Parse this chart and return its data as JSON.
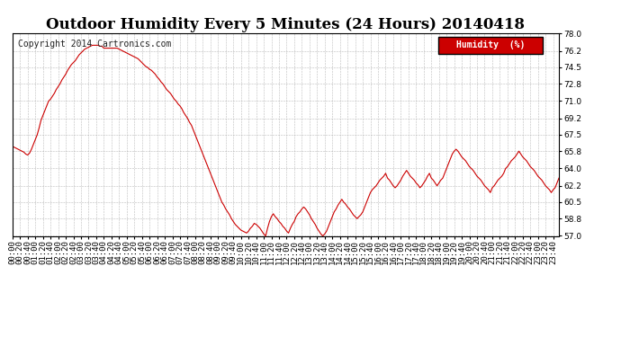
{
  "title": "Outdoor Humidity Every 5 Minutes (24 Hours) 20140418",
  "copyright": "Copyright 2014 Cartronics.com",
  "legend_label": "Humidity  (%)",
  "legend_bg": "#cc0000",
  "legend_text_color": "#ffffff",
  "line_color": "#cc0000",
  "bg_color": "#ffffff",
  "grid_color": "#aaaaaa",
  "ylim": [
    57.0,
    78.0
  ],
  "yticks": [
    57.0,
    58.8,
    60.5,
    62.2,
    64.0,
    65.8,
    67.5,
    69.2,
    71.0,
    72.8,
    74.5,
    76.2,
    78.0
  ],
  "title_fontsize": 12,
  "axis_fontsize": 6.5,
  "copyright_fontsize": 7,
  "humidity_data": [
    66.3,
    66.2,
    66.1,
    66.0,
    65.9,
    65.8,
    65.7,
    65.5,
    65.4,
    65.6,
    66.0,
    66.5,
    67.0,
    67.5,
    68.2,
    69.0,
    69.5,
    70.0,
    70.5,
    71.0,
    71.2,
    71.5,
    71.8,
    72.2,
    72.5,
    72.8,
    73.2,
    73.5,
    73.8,
    74.2,
    74.5,
    74.8,
    75.0,
    75.2,
    75.5,
    75.8,
    76.0,
    76.2,
    76.4,
    76.5,
    76.6,
    76.7,
    76.8,
    76.8,
    76.8,
    76.8,
    76.7,
    76.7,
    76.5,
    76.5,
    76.5,
    76.5,
    76.5,
    76.5,
    76.5,
    76.5,
    76.4,
    76.3,
    76.2,
    76.1,
    76.0,
    75.9,
    75.8,
    75.7,
    75.6,
    75.5,
    75.4,
    75.2,
    75.0,
    74.8,
    74.6,
    74.5,
    74.3,
    74.2,
    74.0,
    73.8,
    73.5,
    73.3,
    73.0,
    72.8,
    72.5,
    72.2,
    72.0,
    71.8,
    71.5,
    71.2,
    71.0,
    70.7,
    70.5,
    70.2,
    69.8,
    69.5,
    69.2,
    68.8,
    68.5,
    68.0,
    67.5,
    67.0,
    66.5,
    66.0,
    65.5,
    65.0,
    64.5,
    64.0,
    63.5,
    63.0,
    62.5,
    62.0,
    61.5,
    61.0,
    60.5,
    60.2,
    59.8,
    59.5,
    59.2,
    58.8,
    58.5,
    58.2,
    58.0,
    57.8,
    57.6,
    57.5,
    57.4,
    57.3,
    57.5,
    57.8,
    58.0,
    58.3,
    58.2,
    58.0,
    57.8,
    57.5,
    57.2,
    57.0,
    57.8,
    58.5,
    59.0,
    59.3,
    59.0,
    58.8,
    58.5,
    58.3,
    58.0,
    57.8,
    57.5,
    57.3,
    57.8,
    58.2,
    58.5,
    59.0,
    59.3,
    59.5,
    59.8,
    60.0,
    59.8,
    59.5,
    59.2,
    58.8,
    58.5,
    58.2,
    57.8,
    57.5,
    57.2,
    57.0,
    57.2,
    57.5,
    58.0,
    58.5,
    59.0,
    59.5,
    59.8,
    60.2,
    60.5,
    60.8,
    60.5,
    60.3,
    60.0,
    59.8,
    59.5,
    59.2,
    59.0,
    58.8,
    59.0,
    59.2,
    59.5,
    60.0,
    60.5,
    61.0,
    61.5,
    61.8,
    62.0,
    62.2,
    62.5,
    62.8,
    63.0,
    63.2,
    63.5,
    63.0,
    62.8,
    62.5,
    62.2,
    62.0,
    62.2,
    62.5,
    62.8,
    63.2,
    63.5,
    63.8,
    63.5,
    63.2,
    63.0,
    62.8,
    62.5,
    62.3,
    62.0,
    62.2,
    62.5,
    62.8,
    63.2,
    63.5,
    63.0,
    62.8,
    62.5,
    62.2,
    62.5,
    62.8,
    63.0,
    63.5,
    64.0,
    64.5,
    65.0,
    65.5,
    65.8,
    66.0,
    65.8,
    65.5,
    65.2,
    65.0,
    64.8,
    64.5,
    64.2,
    64.0,
    63.8,
    63.5,
    63.2,
    63.0,
    62.8,
    62.5,
    62.2,
    62.0,
    61.8,
    61.5,
    62.0,
    62.2,
    62.5,
    62.8,
    63.0,
    63.2,
    63.5,
    64.0,
    64.2,
    64.5,
    64.8,
    65.0,
    65.2,
    65.5,
    65.8,
    65.5,
    65.2,
    65.0,
    64.8,
    64.5,
    64.2,
    64.0,
    63.8,
    63.5,
    63.2,
    63.0,
    62.8,
    62.5,
    62.2,
    62.0,
    61.8,
    61.5,
    61.8,
    62.0,
    62.5,
    63.0,
    63.5,
    64.0,
    64.2,
    64.5,
    64.0,
    63.8,
    63.5,
    63.2,
    63.5,
    64.0,
    64.2,
    64.0
  ]
}
